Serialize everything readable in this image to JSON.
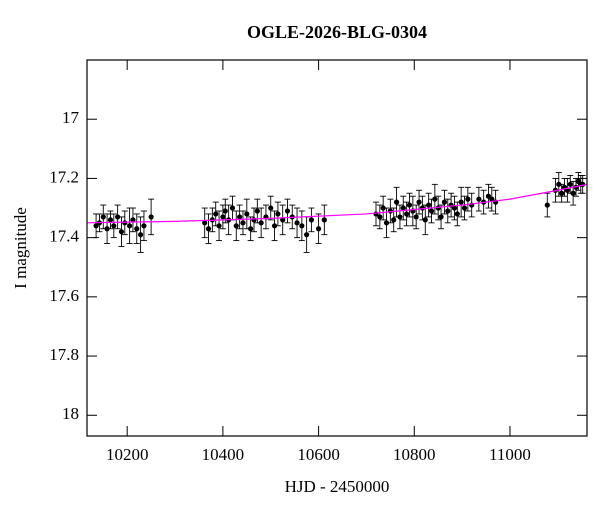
{
  "chart_data": {
    "type": "scatter",
    "title": "OGLE-2026-BLG-0304",
    "x_label": "HJD - 2450000",
    "y_label": "I magnitude",
    "xlim": [
      10116,
      11161
    ],
    "ylim": [
      18.07,
      16.8
    ],
    "xticks": [
      10200,
      10400,
      10600,
      10800,
      11000
    ],
    "yticks": [
      17,
      17.2,
      17.4,
      17.6,
      17.8,
      18
    ],
    "series": [
      {
        "type": "scatter",
        "color": "#000000",
        "x": [
          10135,
          10142,
          10150,
          10158,
          10165,
          10172,
          10180,
          10188,
          10195,
          10205,
          10212,
          10220,
          10228,
          10235,
          10250,
          10362,
          10370,
          10378,
          10385,
          10392,
          10400,
          10405,
          10412,
          10420,
          10428,
          10435,
          10442,
          10450,
          10458,
          10465,
          10472,
          10480,
          10490,
          10500,
          10508,
          10515,
          10525,
          10535,
          10545,
          10555,
          10565,
          10575,
          10585,
          10600,
          10612,
          10720,
          10728,
          10735,
          10742,
          10750,
          10757,
          10763,
          10770,
          10777,
          10784,
          10790,
          10797,
          10804,
          10810,
          10817,
          10823,
          10830,
          10836,
          10843,
          10850,
          10856,
          10863,
          10870,
          10877,
          10884,
          10890,
          10898,
          10905,
          10912,
          10920,
          10935,
          10945,
          10955,
          10962,
          10970,
          11078,
          11095,
          11102,
          11108,
          11114,
          11120,
          11126,
          11132,
          11138,
          11143,
          11148,
          11152
        ],
        "values": [
          17.36,
          17.35,
          17.33,
          17.37,
          17.34,
          17.36,
          17.33,
          17.38,
          17.35,
          17.36,
          17.34,
          17.37,
          17.39,
          17.36,
          17.33,
          17.35,
          17.37,
          17.34,
          17.32,
          17.36,
          17.33,
          17.31,
          17.34,
          17.3,
          17.36,
          17.33,
          17.35,
          17.32,
          17.37,
          17.34,
          17.31,
          17.35,
          17.33,
          17.3,
          17.36,
          17.32,
          17.34,
          17.31,
          17.33,
          17.35,
          17.36,
          17.39,
          17.34,
          17.37,
          17.34,
          17.32,
          17.33,
          17.3,
          17.35,
          17.31,
          17.34,
          17.28,
          17.33,
          17.3,
          17.32,
          17.29,
          17.31,
          17.33,
          17.28,
          17.3,
          17.34,
          17.29,
          17.31,
          17.27,
          17.3,
          17.33,
          17.28,
          17.31,
          17.29,
          17.3,
          17.32,
          17.28,
          17.3,
          17.27,
          17.29,
          17.27,
          17.28,
          17.26,
          17.27,
          17.28,
          17.29,
          17.24,
          17.22,
          17.25,
          17.23,
          17.24,
          17.22,
          17.25,
          17.23,
          17.21,
          17.22,
          17.22
        ],
        "errors": [
          0.04,
          0.03,
          0.04,
          0.05,
          0.03,
          0.04,
          0.04,
          0.05,
          0.04,
          0.06,
          0.04,
          0.05,
          0.06,
          0.05,
          0.06,
          0.05,
          0.05,
          0.04,
          0.04,
          0.05,
          0.04,
          0.04,
          0.05,
          0.04,
          0.05,
          0.04,
          0.04,
          0.05,
          0.04,
          0.04,
          0.04,
          0.05,
          0.04,
          0.04,
          0.05,
          0.04,
          0.05,
          0.04,
          0.04,
          0.05,
          0.05,
          0.06,
          0.04,
          0.05,
          0.05,
          0.04,
          0.04,
          0.04,
          0.05,
          0.04,
          0.04,
          0.05,
          0.04,
          0.04,
          0.04,
          0.04,
          0.05,
          0.04,
          0.04,
          0.04,
          0.05,
          0.04,
          0.04,
          0.05,
          0.04,
          0.04,
          0.04,
          0.04,
          0.04,
          0.04,
          0.04,
          0.05,
          0.04,
          0.04,
          0.04,
          0.04,
          0.04,
          0.04,
          0.04,
          0.04,
          0.04,
          0.04,
          0.04,
          0.03,
          0.03,
          0.04,
          0.03,
          0.04,
          0.03,
          0.03,
          0.03,
          0.03
        ]
      },
      {
        "type": "line",
        "color": "#ff00ff",
        "x": [
          10116,
          10300,
          10500,
          10700,
          10800,
          10900,
          11000,
          11100,
          11161
        ],
        "values": [
          17.35,
          17.345,
          17.335,
          17.32,
          17.305,
          17.29,
          17.27,
          17.24,
          17.22
        ]
      }
    ]
  }
}
